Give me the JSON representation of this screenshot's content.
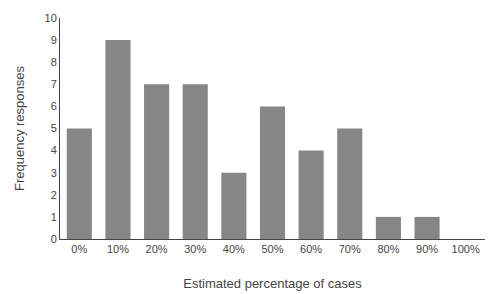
{
  "chart_data": {
    "type": "bar",
    "categories": [
      "0%",
      "10%",
      "20%",
      "30%",
      "40%",
      "50%",
      "60%",
      "70%",
      "80%",
      "90%",
      "100%"
    ],
    "values": [
      5,
      9,
      7,
      7,
      3,
      6,
      4,
      5,
      1,
      1,
      0
    ],
    "color": "#868686",
    "xlabel": "Estimated percentage of cases",
    "ylabel": "Frequency responses",
    "ylim": [
      0,
      10
    ],
    "yticks": [
      0,
      1,
      2,
      3,
      4,
      5,
      6,
      7,
      8,
      9,
      10
    ],
    "grid": false
  }
}
